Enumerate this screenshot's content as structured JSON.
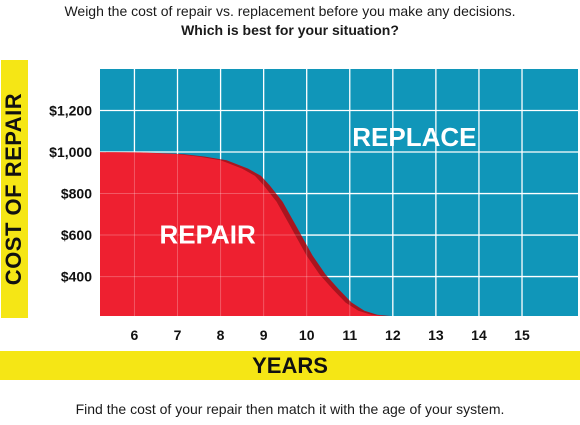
{
  "header": {
    "line1": "Weigh the cost of repair vs. replacement before you make any decisions.",
    "line2": "Which is best for your situation?"
  },
  "footer": {
    "text": "Find the cost of your repair then match it with the age of your system."
  },
  "colors": {
    "replace_region": "#1096b9",
    "repair_region": "#ee2030",
    "repair_shadow": "#a8151f",
    "band": "#f5e615",
    "grid": "#ffffff"
  },
  "chart_data": {
    "type": "area",
    "xlabel": "YEARS",
    "ylabel": "COST OF REPAIR",
    "x_ticks": [
      "6",
      "7",
      "8",
      "9",
      "10",
      "11",
      "12",
      "13",
      "14",
      "15"
    ],
    "x_tick_values": [
      6,
      7,
      8,
      9,
      10,
      11,
      12,
      13,
      14,
      15
    ],
    "y_ticks": [
      "$400",
      "$600",
      "$800",
      "$1,000",
      "$1,200"
    ],
    "y_tick_values": [
      400,
      600,
      800,
      1000,
      1200
    ],
    "xlim": [
      5.2,
      16.3
    ],
    "ylim": [
      210,
      1400
    ],
    "grid": true,
    "regions": [
      {
        "label": "REPAIR",
        "position": "below curve"
      },
      {
        "label": "REPLACE",
        "position": "above curve"
      }
    ],
    "boundary": {
      "x": [
        5.2,
        6,
        7,
        7.5,
        8,
        8.5,
        8.8,
        9,
        9.3,
        9.6,
        10,
        10.3,
        10.6,
        10.9,
        11.2,
        11.5,
        11.8
      ],
      "y": [
        1000,
        998,
        990,
        978,
        960,
        920,
        885,
        840,
        760,
        650,
        500,
        410,
        340,
        275,
        235,
        216,
        210
      ]
    }
  }
}
